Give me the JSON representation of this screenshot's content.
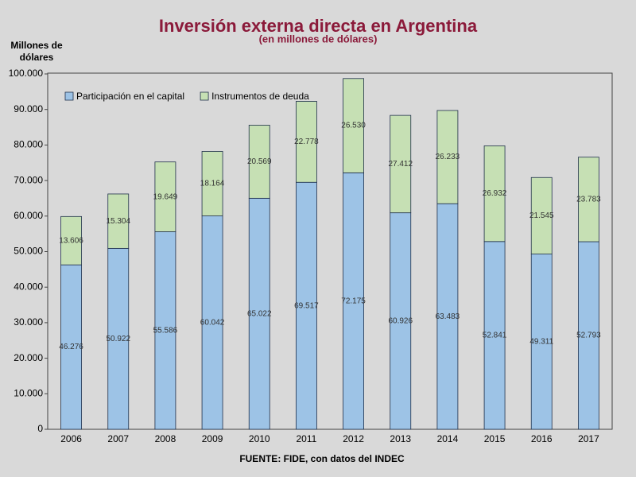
{
  "chart_data": {
    "type": "stacked_bar",
    "title": "Inversión externa directa en Argentina",
    "subtitle": "(en millones de dólares)",
    "y_label": "Millones de dólares",
    "source": "FUENTE: FIDE, con datos del INDEC",
    "categories": [
      "2006",
      "2007",
      "2008",
      "2009",
      "2010",
      "2011",
      "2012",
      "2013",
      "2014",
      "2015",
      "2016",
      "2017"
    ],
    "series": [
      {
        "name": "Participación en el capital",
        "color": "#9dc3e6",
        "values": [
          46276,
          50922,
          55586,
          60042,
          65022,
          69517,
          72175,
          60926,
          63483,
          52841,
          49311,
          52793
        ],
        "value_labels": [
          "46.276",
          "50.922",
          "55.586",
          "60.042",
          "65.022",
          "69.517",
          "72.175",
          "60.926",
          "63.483",
          "52.841",
          "49.311",
          "52.793"
        ]
      },
      {
        "name": "Instrumentos de deuda",
        "color": "#c6e0b4",
        "values": [
          13606,
          15304,
          19649,
          18164,
          20569,
          22778,
          26530,
          27412,
          26233,
          26932,
          21545,
          23783
        ],
        "value_labels": [
          "13.606",
          "15.304",
          "19.649",
          "18.164",
          "20.569",
          "22.778",
          "26.530",
          "27.412",
          "26.233",
          "26.932",
          "21.545",
          "23.783"
        ]
      }
    ],
    "ylim": [
      0,
      100000
    ],
    "yticks": [
      0,
      {
        "value": 10000,
        "label": "10.000"
      },
      {
        "value": 20000,
        "label": "20.000"
      },
      {
        "value": 30000,
        "label": "30.000"
      },
      {
        "value": 40000,
        "label": "40.000"
      },
      {
        "value": 50000,
        "label": "50.000"
      },
      {
        "value": 60000,
        "label": "60.000"
      },
      {
        "value": 70000,
        "label": "70.000"
      },
      {
        "value": 80000,
        "label": "80.000"
      },
      {
        "value": 90000,
        "label": "90.000"
      },
      {
        "value": 100000,
        "label": "100.000"
      }
    ],
    "legend": "top-left"
  }
}
